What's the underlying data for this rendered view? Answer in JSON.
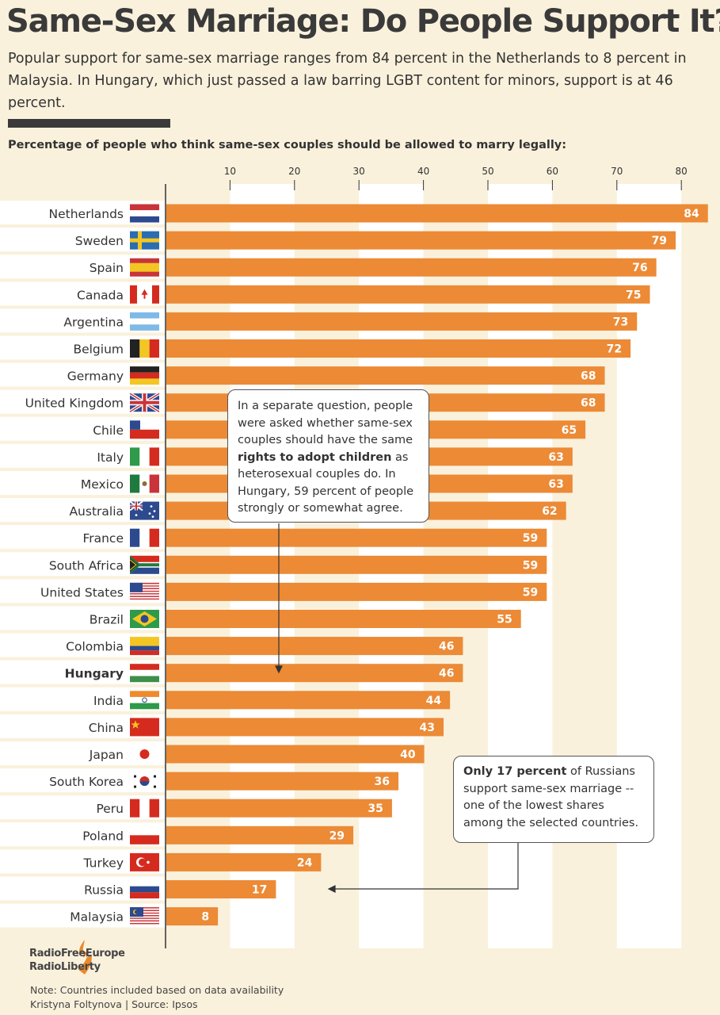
{
  "header": {
    "title": "Same-Sex Marriage: Do People Support It?",
    "subtitle": "Popular support for same-sex marriage ranges from 84 percent in the Netherlands to 8 percent in Malaysia. In Hungary, which just passed a law barring LGBT content for minors, support is at 46 percent.",
    "question": "Percentage of people who think same-sex couples should be allowed to marry legally:"
  },
  "chart_data": {
    "type": "bar",
    "orientation": "horizontal",
    "categories": [
      "Netherlands",
      "Sweden",
      "Spain",
      "Canada",
      "Argentina",
      "Belgium",
      "Germany",
      "United Kingdom",
      "Chile",
      "Italy",
      "Mexico",
      "Australia",
      "France",
      "South Africa",
      "United States",
      "Brazil",
      "Colombia",
      "Hungary",
      "India",
      "China",
      "Japan",
      "South Korea",
      "Peru",
      "Poland",
      "Turkey",
      "Russia",
      "Malaysia"
    ],
    "values": [
      84,
      79,
      76,
      75,
      73,
      72,
      68,
      68,
      65,
      63,
      63,
      62,
      59,
      59,
      59,
      55,
      46,
      46,
      44,
      43,
      40,
      36,
      35,
      29,
      24,
      17,
      8
    ],
    "highlight": "Hungary",
    "x_ticks": [
      10,
      20,
      30,
      40,
      50,
      60,
      70,
      80
    ],
    "xlim": [
      0,
      85
    ],
    "grid": "alternating vertical bands",
    "colors": {
      "bar": "#ec8a36",
      "background": "#faf1dc",
      "band": "#ffffff",
      "label_text": "#ffffff"
    }
  },
  "annotations": {
    "adoption": {
      "line1": "In a separate question, people",
      "line2": "were asked whether same-sex",
      "line3": "couples should have the same",
      "bold": "rights to adopt children",
      "line4_rest": " as",
      "line5": "heterosexual couples do. In",
      "line6": "Hungary, 59 percent of people",
      "line7": "strongly or somewhat agree."
    },
    "russia": {
      "bold": "Only 17 percent",
      "line1_rest": " of Russians",
      "line2": "support same-sex marriage --",
      "line3": "one of the lowest shares",
      "line4": "among the selected countries."
    }
  },
  "logo": {
    "line1": "RadioFreeEurope",
    "line2": "RadioLiberty"
  },
  "footer": {
    "note": "Note: Countries included based on data availability",
    "credit": "Kristyna Foltynova | Source: Ipsos"
  }
}
